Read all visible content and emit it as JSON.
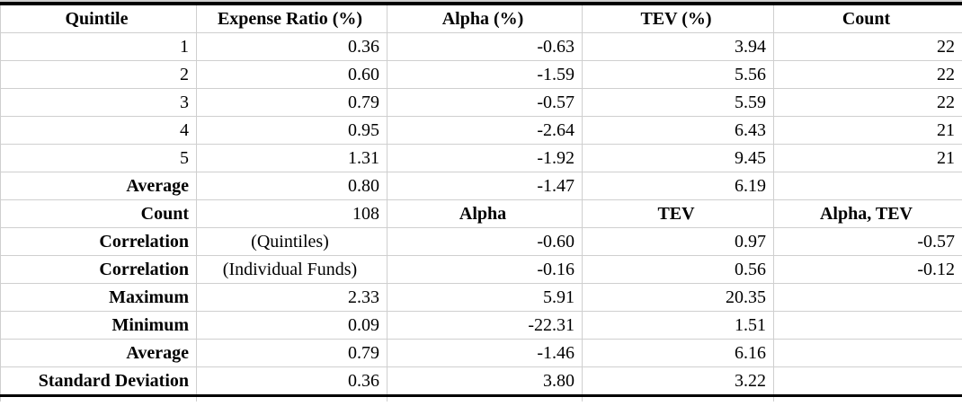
{
  "colors": {
    "gridline": "#cfcfcf",
    "rule_border": "#000000",
    "background": "#ffffff",
    "text": "#000000"
  },
  "table": {
    "columns": [
      "Quintile",
      "Expense Ratio (%)",
      "Alpha (%)",
      "TEV (%)",
      "Count"
    ],
    "rows": [
      {
        "cells": [
          {
            "t": "1"
          },
          {
            "t": "0.36"
          },
          {
            "t": "-0.63"
          },
          {
            "t": "3.94"
          },
          {
            "t": "22"
          }
        ]
      },
      {
        "cells": [
          {
            "t": "2"
          },
          {
            "t": "0.60"
          },
          {
            "t": "-1.59"
          },
          {
            "t": "5.56"
          },
          {
            "t": "22"
          }
        ]
      },
      {
        "cells": [
          {
            "t": "3"
          },
          {
            "t": "0.79"
          },
          {
            "t": "-0.57"
          },
          {
            "t": "5.59"
          },
          {
            "t": "22"
          }
        ]
      },
      {
        "cells": [
          {
            "t": "4"
          },
          {
            "t": "0.95"
          },
          {
            "t": "-2.64"
          },
          {
            "t": "6.43"
          },
          {
            "t": "21"
          }
        ]
      },
      {
        "cells": [
          {
            "t": "5"
          },
          {
            "t": "1.31"
          },
          {
            "t": "-1.92"
          },
          {
            "t": "9.45"
          },
          {
            "t": "21"
          }
        ]
      },
      {
        "cells": [
          {
            "t": "Average",
            "b": 1
          },
          {
            "t": "0.80"
          },
          {
            "t": "-1.47"
          },
          {
            "t": "6.19"
          },
          {
            "t": ""
          }
        ]
      },
      {
        "cells": [
          {
            "t": "Count",
            "b": 1
          },
          {
            "t": "108"
          },
          {
            "t": "Alpha",
            "b": 1,
            "c": 1
          },
          {
            "t": "TEV",
            "b": 1,
            "c": 1
          },
          {
            "t": "Alpha, TEV",
            "b": 1,
            "c": 1
          }
        ]
      },
      {
        "cells": [
          {
            "t": "Correlation",
            "b": 1
          },
          {
            "t": "(Quintiles)",
            "c": 1
          },
          {
            "t": "-0.60"
          },
          {
            "t": "0.97"
          },
          {
            "t": "-0.57"
          }
        ]
      },
      {
        "cells": [
          {
            "t": "Correlation",
            "b": 1
          },
          {
            "t": "(Individual Funds)",
            "c": 1
          },
          {
            "t": "-0.16"
          },
          {
            "t": "0.56"
          },
          {
            "t": "-0.12"
          }
        ]
      },
      {
        "cells": [
          {
            "t": "Maximum",
            "b": 1
          },
          {
            "t": "2.33"
          },
          {
            "t": "5.91"
          },
          {
            "t": "20.35"
          },
          {
            "t": ""
          }
        ]
      },
      {
        "cells": [
          {
            "t": "Minimum",
            "b": 1
          },
          {
            "t": "0.09"
          },
          {
            "t": "-22.31"
          },
          {
            "t": "1.51"
          },
          {
            "t": ""
          }
        ]
      },
      {
        "cells": [
          {
            "t": "Average",
            "b": 1
          },
          {
            "t": "0.79"
          },
          {
            "t": "-1.46"
          },
          {
            "t": "6.16"
          },
          {
            "t": ""
          }
        ]
      },
      {
        "cells": [
          {
            "t": "Standard Deviation",
            "b": 1
          },
          {
            "t": "0.36"
          },
          {
            "t": "3.80"
          },
          {
            "t": "3.22"
          },
          {
            "t": ""
          }
        ]
      }
    ]
  }
}
